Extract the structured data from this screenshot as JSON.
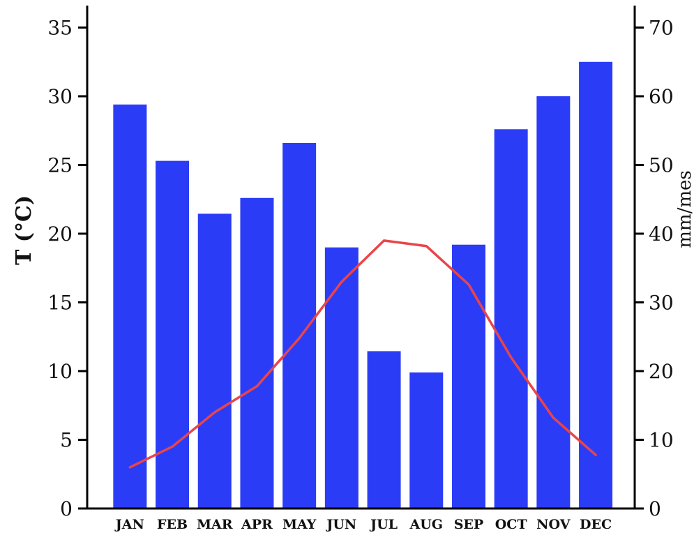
{
  "chart_data": {
    "type": "bar",
    "categories": [
      "JAN",
      "FEB",
      "MAR",
      "APR",
      "MAY",
      "JUN",
      "JUL",
      "AUG",
      "SEP",
      "OCT",
      "NOV",
      "DEC"
    ],
    "y_left": {
      "label": "T (°C)",
      "ylim": [
        0,
        36
      ],
      "ticks": [
        0,
        5,
        10,
        15,
        20,
        25,
        30,
        35
      ]
    },
    "y_right": {
      "label": "mm/mes",
      "ylim": [
        0,
        72
      ],
      "ticks": [
        0,
        10,
        20,
        30,
        40,
        50,
        60,
        70
      ]
    },
    "series": [
      {
        "type": "bar",
        "axis": "right",
        "color": "#2b3cf7",
        "values": [
          58.8,
          50.6,
          42.9,
          45.2,
          53.2,
          38.0,
          22.9,
          19.8,
          38.4,
          55.2,
          60.0,
          65.0
        ]
      },
      {
        "type": "line",
        "axis": "left",
        "color": "#e8454a",
        "values": [
          3.0,
          4.5,
          7.0,
          8.9,
          12.4,
          16.5,
          19.5,
          19.1,
          16.3,
          11.0,
          6.6,
          3.9
        ]
      }
    ],
    "grid": false
  }
}
